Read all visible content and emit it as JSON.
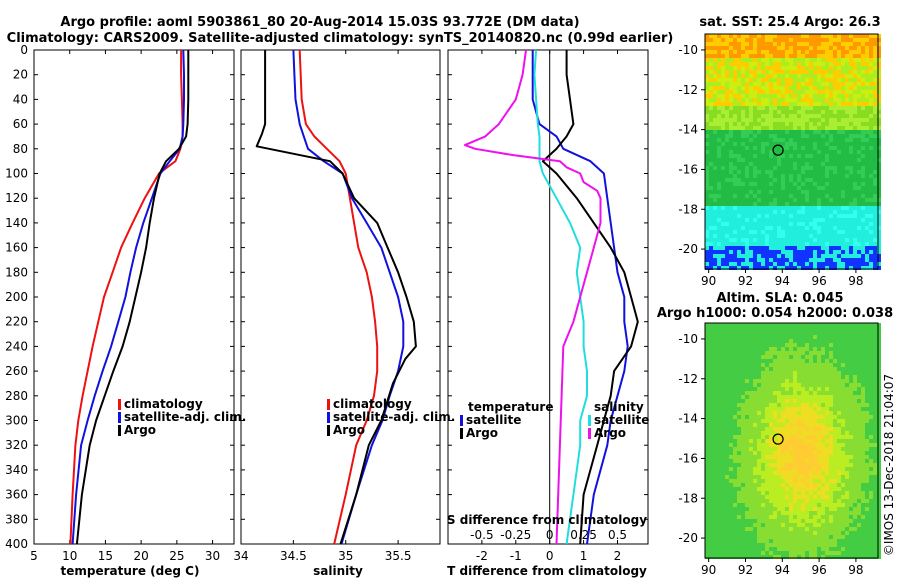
{
  "title_line1": "Argo profile: aoml 5903861_80 20-Aug-2014 15.03S 93.772E (DM data)",
  "title_line2": "Climatology: CARS2009. Satellite-adjusted climatology: synTS_20140820.nc (0.99d earlier)",
  "watermark": "©IMOS 13-Dec-2018 21:04:07",
  "colors": {
    "climatology": "#ee1111",
    "satellite": "#1111dd",
    "argo": "#000000",
    "s_clim": "#ee11ee",
    "s_sat": "#22dddd"
  },
  "depth_ticks": [
    "0",
    "20",
    "40",
    "60",
    "80",
    "100",
    "120",
    "140",
    "160",
    "180",
    "200",
    "220",
    "240",
    "260",
    "280",
    "300",
    "320",
    "340",
    "360",
    "380",
    "400"
  ],
  "chart_data": [
    {
      "type": "line",
      "id": "temperature",
      "xlabel": "temperature (deg C)",
      "xlim": [
        5,
        33
      ],
      "ylim": [
        400,
        0
      ],
      "xticks": [
        "5",
        "10",
        "15",
        "20",
        "25",
        "30"
      ],
      "legend": [
        {
          "key": "climatology",
          "label": "climatology"
        },
        {
          "key": "satellite",
          "label": "satellite-adj. clim."
        },
        {
          "key": "argo",
          "label": "Argo"
        }
      ],
      "series": [
        {
          "name": "climatology",
          "key": "climatology",
          "x": [
            25.6,
            25.6,
            25.7,
            25.8,
            25.8,
            25.5,
            24.8,
            22.5,
            20.5,
            18.8,
            17.2,
            16.0,
            14.8,
            14.0,
            13.2,
            12.5,
            11.8,
            11.2,
            10.8,
            10.4,
            10.1
          ],
          "y": [
            0,
            20,
            40,
            60,
            70,
            80,
            90,
            100,
            120,
            140,
            160,
            180,
            200,
            220,
            240,
            260,
            280,
            300,
            320,
            360,
            400
          ]
        },
        {
          "name": "satellite-adj. clim.",
          "key": "satellite",
          "x": [
            25.9,
            26.0,
            26.0,
            25.9,
            25.8,
            25.4,
            24.0,
            22.7,
            21.5,
            20.3,
            19.3,
            18.5,
            17.8,
            16.8,
            15.8,
            14.6,
            13.5,
            12.5,
            11.6,
            10.9,
            10.4
          ],
          "y": [
            0,
            20,
            40,
            60,
            70,
            80,
            90,
            100,
            120,
            140,
            160,
            180,
            200,
            220,
            240,
            260,
            280,
            300,
            320,
            360,
            400
          ]
        },
        {
          "name": "Argo",
          "key": "argo",
          "x": [
            26.6,
            26.6,
            26.6,
            26.5,
            26.3,
            25.3,
            23.5,
            22.6,
            21.8,
            21.2,
            20.7,
            20.0,
            19.2,
            18.4,
            17.4,
            16.1,
            14.9,
            13.7,
            12.8,
            11.7,
            11.0
          ],
          "y": [
            0,
            20,
            40,
            60,
            70,
            80,
            90,
            100,
            120,
            140,
            160,
            180,
            200,
            220,
            240,
            260,
            280,
            300,
            320,
            360,
            400
          ]
        }
      ]
    },
    {
      "type": "line",
      "id": "salinity",
      "xlabel": "salinity",
      "xlim": [
        34,
        35.9
      ],
      "ylim": [
        400,
        0
      ],
      "xticks": [
        "34",
        "34.5",
        "35",
        "35.5"
      ],
      "legend": [
        {
          "key": "climatology",
          "label": "climatology"
        },
        {
          "key": "satellite",
          "label": "satellite-adj. clim."
        },
        {
          "key": "argo",
          "label": "Argo"
        }
      ],
      "series": [
        {
          "name": "climatology",
          "key": "climatology",
          "x": [
            34.56,
            34.57,
            34.58,
            34.62,
            34.7,
            34.82,
            34.94,
            35.0,
            35.04,
            35.08,
            35.12,
            35.2,
            35.25,
            35.28,
            35.3,
            35.3,
            35.27,
            35.2,
            35.1,
            35.0,
            34.89
          ],
          "y": [
            0,
            20,
            40,
            60,
            70,
            80,
            90,
            100,
            120,
            140,
            160,
            180,
            200,
            220,
            240,
            260,
            280,
            300,
            320,
            360,
            400
          ]
        },
        {
          "name": "satellite-adj. clim.",
          "key": "satellite",
          "x": [
            34.5,
            34.51,
            34.52,
            34.56,
            34.6,
            34.64,
            34.79,
            34.97,
            35.06,
            35.2,
            35.34,
            35.42,
            35.5,
            35.55,
            35.55,
            35.5,
            35.42,
            35.35,
            35.25,
            35.1,
            34.96
          ],
          "y": [
            0,
            20,
            40,
            60,
            70,
            80,
            90,
            100,
            120,
            140,
            160,
            180,
            200,
            220,
            240,
            260,
            280,
            300,
            320,
            360,
            400
          ]
        },
        {
          "name": "Argo",
          "key": "argo",
          "x": [
            34.23,
            34.23,
            34.23,
            34.23,
            34.2,
            34.15,
            34.85,
            34.97,
            35.08,
            35.3,
            35.4,
            35.5,
            35.58,
            35.65,
            35.67,
            35.57,
            35.45,
            35.34,
            35.22,
            35.1,
            34.95
          ],
          "y": [
            0,
            5,
            40,
            60,
            68,
            78,
            90,
            100,
            120,
            140,
            160,
            180,
            200,
            220,
            240,
            250,
            270,
            300,
            320,
            360,
            400
          ]
        }
      ]
    },
    {
      "type": "line",
      "id": "difference",
      "xlabel": "T difference from climatology",
      "top_label": "S difference from climatology",
      "xlim": [
        -3,
        2.9
      ],
      "ylim": [
        400,
        0
      ],
      "xticks": [
        "-2",
        "-1",
        "0",
        "1",
        "2"
      ],
      "top_xticks": [
        "-0.5",
        "-0.25",
        "0",
        "0.25",
        "0.5"
      ],
      "legend_left": {
        "title": "temperature",
        "items": [
          {
            "key": "satellite",
            "label": "satellite"
          },
          {
            "key": "argo",
            "label": "Argo"
          }
        ]
      },
      "legend_right": {
        "title": "salinity",
        "items": [
          {
            "key": "s_sat",
            "label": "satellite"
          },
          {
            "key": "s_clim",
            "label": "Argo"
          }
        ]
      },
      "series": [
        {
          "name": "T satellite",
          "key": "satellite",
          "x": [
            -0.5,
            -0.5,
            -0.5,
            -0.3,
            0.2,
            0.4,
            1.2,
            1.6,
            1.7,
            1.8,
            1.9,
            2.0,
            2.2,
            2.2,
            2.3,
            2.2,
            2.0,
            1.8,
            1.7,
            1.3,
            1.1
          ],
          "y": [
            0,
            20,
            40,
            60,
            70,
            80,
            90,
            100,
            120,
            140,
            160,
            180,
            200,
            220,
            240,
            260,
            280,
            300,
            320,
            360,
            400
          ]
        },
        {
          "name": "T Argo",
          "key": "argo",
          "x": [
            0.5,
            0.5,
            0.6,
            0.7,
            0.5,
            0.2,
            -0.2,
            0.2,
            0.8,
            1.3,
            1.8,
            2.2,
            2.4,
            2.6,
            2.4,
            1.9,
            1.8,
            1.6,
            1.4,
            1.0,
            0.9
          ],
          "y": [
            0,
            20,
            40,
            60,
            70,
            80,
            90,
            100,
            120,
            140,
            160,
            180,
            200,
            220,
            240,
            260,
            280,
            300,
            320,
            360,
            400
          ]
        },
        {
          "name": "S satellite",
          "key": "s_sat",
          "x": [
            -0.4,
            -0.45,
            -0.4,
            -0.35,
            -0.3,
            -0.3,
            -0.3,
            -0.2,
            0.2,
            0.6,
            0.9,
            0.8,
            0.9,
            1.0,
            1.0,
            1.1,
            1.1,
            0.9,
            0.9,
            0.7,
            0.5
          ],
          "y": [
            0,
            20,
            40,
            60,
            70,
            80,
            90,
            100,
            120,
            140,
            160,
            180,
            200,
            220,
            240,
            260,
            280,
            300,
            320,
            360,
            400
          ]
        },
        {
          "name": "S Argo",
          "key": "s_clim",
          "x": [
            -0.7,
            -0.8,
            -1.0,
            -1.5,
            -1.9,
            -2.5,
            -2.2,
            -1.1,
            0.3,
            0.5,
            0.9,
            1.0,
            1.4,
            1.5,
            1.5,
            1.3,
            1.1,
            0.9,
            0.7,
            0.4,
            0.2
          ],
          "y": [
            0,
            20,
            40,
            60,
            70,
            77,
            80,
            85,
            90,
            95,
            100,
            107,
            114,
            120,
            140,
            160,
            180,
            200,
            220,
            240,
            400
          ]
        }
      ]
    }
  ],
  "maps": [
    {
      "id": "sst",
      "title": "sat. SST: 25.4 Argo: 26.3",
      "lat_ticks": [
        "-10",
        "-12",
        "-14",
        "-16",
        "-18",
        "-20"
      ],
      "lon_ticks": [
        "90",
        "92",
        "94",
        "96",
        "98"
      ],
      "lat_range": [
        -21,
        -9.2
      ],
      "lon_range": [
        89.8,
        99.2
      ],
      "argo_lon": 93.77,
      "argo_lat": -15.03
    },
    {
      "id": "sla",
      "title_line1": "Altim. SLA: 0.045",
      "title_line2": "Argo h1000: 0.054 h2000: 0.038",
      "lat_ticks": [
        "-10",
        "-12",
        "-14",
        "-16",
        "-18",
        "-20"
      ],
      "lon_ticks": [
        "90",
        "92",
        "94",
        "96",
        "98"
      ],
      "lat_range": [
        -21,
        -9.2
      ],
      "lon_range": [
        89.8,
        99.2
      ],
      "argo_lon": 93.77,
      "argo_lat": -15.03
    }
  ]
}
